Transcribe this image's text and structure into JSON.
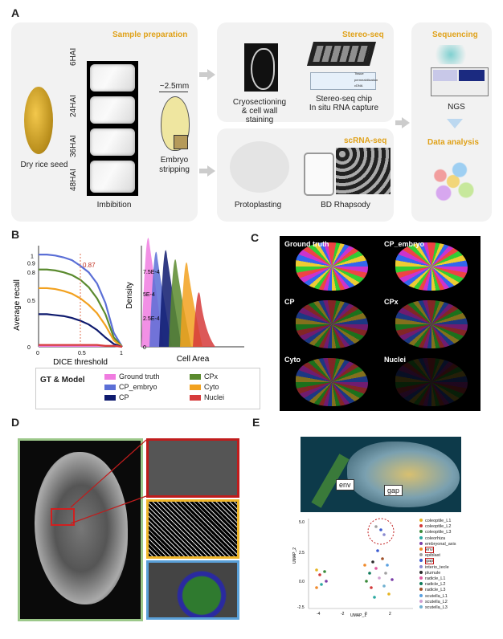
{
  "panels": {
    "a": "A",
    "b": "B",
    "c": "C",
    "d": "D",
    "e": "E"
  },
  "panelA": {
    "sample_prep_title": "Sample preparation",
    "stereo_title": "Stereo-seq",
    "scrna_title": "scRNA-seq",
    "sequencing_title": "Sequencing",
    "data_analysis_title": "Data analysis",
    "dry_seed": "Dry rice seed",
    "times": [
      "6HAI",
      "24HAI",
      "36HAI",
      "48HAI"
    ],
    "imbibition": "Imbibition",
    "scale": "~2.5mm",
    "embryo_stripping": "Embryo\nstripping",
    "cryo": "Cryosectioning",
    "cryo2": "& cell wall staining",
    "chip": "Stereo-seq chip",
    "chip2": "In situ RNA capture",
    "protoplasting": "Protoplasting",
    "bd": "BD Rhapsody",
    "ngs": "NGS",
    "chip_tiny": [
      "Tissue",
      "permeabilization",
      "cDNA"
    ]
  },
  "panelB": {
    "ylabel": "Average recall",
    "xlabel": "DICE threshold",
    "yticks": [
      "0.9",
      "0.8",
      "0.5",
      "0"
    ],
    "ytick1": "1",
    "xticks": [
      "0",
      "0.5",
      "1"
    ],
    "annot": "0.87",
    "density_label": "Density",
    "density_ticks": [
      "7.5E-4",
      "5E-4",
      "2.5E-4",
      "0"
    ],
    "cellarea_label": "Cell Area",
    "legend_title": "GT & Model",
    "legend": [
      {
        "name": "Ground truth",
        "color": "#f07ce0"
      },
      {
        "name": "CP_embryo",
        "color": "#5b6fd6"
      },
      {
        "name": "CP",
        "color": "#0e1a6e"
      },
      {
        "name": "CPx",
        "color": "#5a8a2e"
      },
      {
        "name": "Cyto",
        "color": "#f2a11f"
      },
      {
        "name": "Nuclei",
        "color": "#d63b3b"
      }
    ]
  },
  "chart_data": {
    "type": "line",
    "xlabel": "DICE threshold",
    "ylabel": "Average recall",
    "xlim": [
      0,
      1
    ],
    "ylim": [
      0,
      1
    ],
    "x": [
      0,
      0.1,
      0.2,
      0.3,
      0.4,
      0.5,
      0.6,
      0.7,
      0.8,
      0.9,
      1.0
    ],
    "series": [
      {
        "name": "CP_embryo",
        "values": [
          0.99,
          0.99,
          0.98,
          0.96,
          0.93,
          0.87,
          0.8,
          0.68,
          0.47,
          0.15,
          0
        ]
      },
      {
        "name": "CPx",
        "values": [
          0.83,
          0.83,
          0.82,
          0.8,
          0.77,
          0.72,
          0.64,
          0.52,
          0.35,
          0.1,
          0
        ]
      },
      {
        "name": "Cyto",
        "values": [
          0.63,
          0.63,
          0.62,
          0.6,
          0.57,
          0.52,
          0.45,
          0.36,
          0.23,
          0.07,
          0
        ]
      },
      {
        "name": "CP",
        "values": [
          0.35,
          0.35,
          0.34,
          0.33,
          0.31,
          0.28,
          0.24,
          0.18,
          0.1,
          0.03,
          0
        ]
      },
      {
        "name": "Ground truth",
        "values": [
          0.01,
          0.01,
          0.01,
          0.01,
          0.01,
          0.01,
          0.01,
          0.01,
          0.01,
          0.01,
          0
        ]
      },
      {
        "name": "Nuclei",
        "values": [
          0.02,
          0.02,
          0.02,
          0.02,
          0.02,
          0.02,
          0.02,
          0.02,
          0.01,
          0.01,
          0
        ]
      }
    ],
    "annotation": {
      "x": 0.5,
      "y": 0.87,
      "text": "0.87"
    }
  },
  "panelC": {
    "captions": [
      "Ground truth",
      "CP_embryo",
      "CP",
      "CPx",
      "Cyto",
      "Nuclei"
    ]
  },
  "panelE": {
    "env": "env",
    "gap": "gap",
    "umap_x": "UMAP_1",
    "umap_y": "UMAP_2",
    "yticks": [
      "5.0",
      "2.5",
      "0.0",
      "-2.5"
    ],
    "xticks": [
      "-4",
      "-2",
      "0",
      "2"
    ],
    "legend": [
      {
        "name": "coleoptile_L1",
        "color": "#e6b422"
      },
      {
        "name": "coleoptile_L2",
        "color": "#d23a3a"
      },
      {
        "name": "coleoptile_L3",
        "color": "#3a8a3a"
      },
      {
        "name": "coleorhiza",
        "color": "#2aa8a0"
      },
      {
        "name": "embryonal_axis",
        "color": "#7a3ea8"
      },
      {
        "name": "env",
        "color": "#f08a2a"
      },
      {
        "name": "epiblast",
        "color": "#a0a0a0"
      },
      {
        "name": "gap",
        "color": "#3a5ad0"
      },
      {
        "name": "interio_tecle",
        "color": "#8a8ad0"
      },
      {
        "name": "plumule",
        "color": "#2a2a2a"
      },
      {
        "name": "radicle_L1",
        "color": "#e05aa0"
      },
      {
        "name": "radicle_L2",
        "color": "#0e7a5a"
      },
      {
        "name": "radicle_L3",
        "color": "#a0502a"
      },
      {
        "name": "scutella_L1",
        "color": "#5aa0e0"
      },
      {
        "name": "scutella_L2",
        "color": "#d0a0d0"
      },
      {
        "name": "scutella_L3",
        "color": "#70b0d0"
      }
    ]
  }
}
